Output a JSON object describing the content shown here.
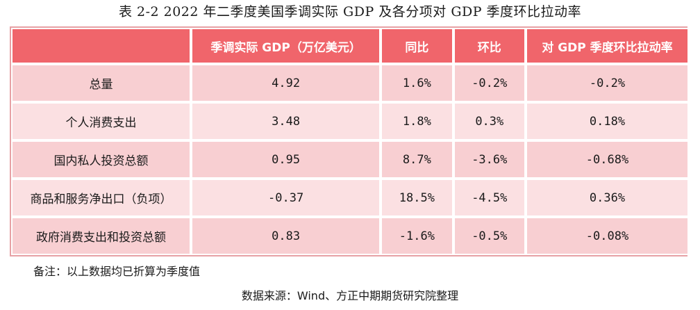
{
  "title": "表 2-2 2022 年二季度美国季调实际 GDP 及各分项对 GDP 季度环比拉动率",
  "table": {
    "headers": [
      "",
      "季调实际 GDP（万亿美元）",
      "同比",
      "环比",
      "对 GDP 季度环比拉动率"
    ],
    "rows": [
      {
        "label": "总量",
        "gdp": "4.92",
        "yoy": "1.6%",
        "qoq": "-0.2%",
        "contribution": "-0.2%"
      },
      {
        "label": "个人消费支出",
        "gdp": "3.48",
        "yoy": "1.8%",
        "qoq": "0.3%",
        "contribution": "0.18%"
      },
      {
        "label": "国内私人投资总额",
        "gdp": "0.95",
        "yoy": "8.7%",
        "qoq": "-3.6%",
        "contribution": "-0.68%"
      },
      {
        "label": "商品和服务净出口（负项）",
        "gdp": "-0.37",
        "yoy": "18.5%",
        "qoq": "-4.5%",
        "contribution": "0.36%"
      },
      {
        "label": "政府消费支出和投资总额",
        "gdp": "0.83",
        "yoy": "-1.6%",
        "qoq": "-0.5%",
        "contribution": "-0.08%"
      }
    ]
  },
  "note": "备注：以上数据均已折算为季度值",
  "source": "数据来源：Wind、方正中期期货研究院整理",
  "colors": {
    "header_bg": "#f0656b",
    "row_bg_light": "#fbe0e2",
    "row_bg_dark": "#f8cfd2"
  }
}
